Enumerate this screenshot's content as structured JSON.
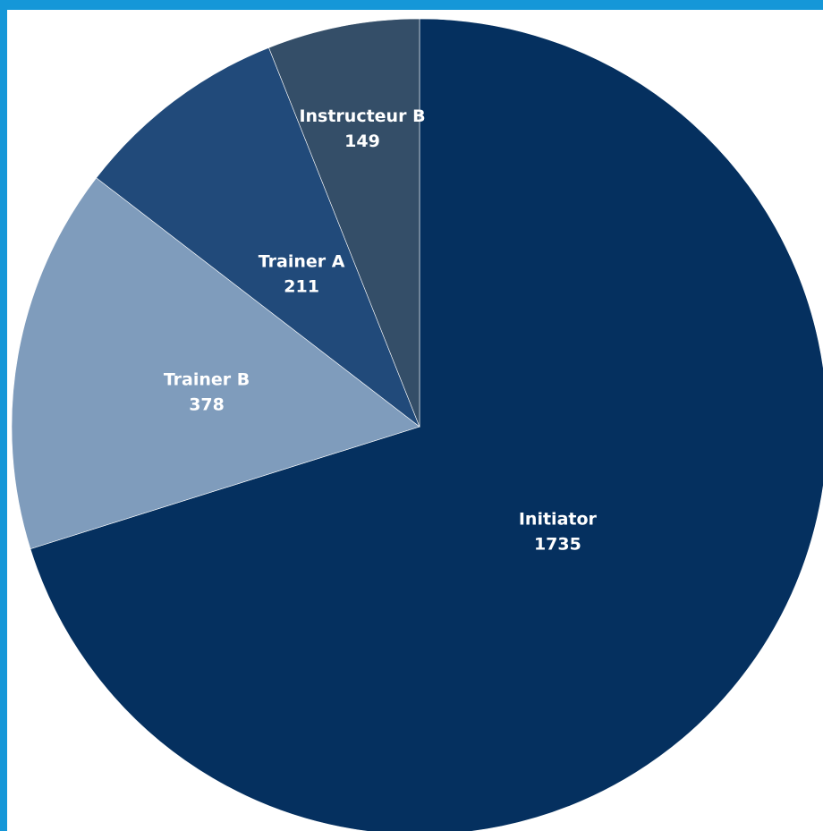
{
  "chart_data": {
    "type": "pie",
    "title": "",
    "start_angle_deg": 0,
    "direction": "clockwise",
    "slices": [
      {
        "label": "Initiator",
        "value": 1735,
        "color": "#05305f"
      },
      {
        "label": "Trainer B",
        "value": 378,
        "color": "#7f9cbc"
      },
      {
        "label": "Trainer A",
        "value": 211,
        "color": "#214a7a"
      },
      {
        "label": "Instructeur B",
        "value": 149,
        "color": "#344e68"
      }
    ]
  },
  "frame": {
    "border_color": "#1597d8",
    "background": "#ffffff"
  }
}
